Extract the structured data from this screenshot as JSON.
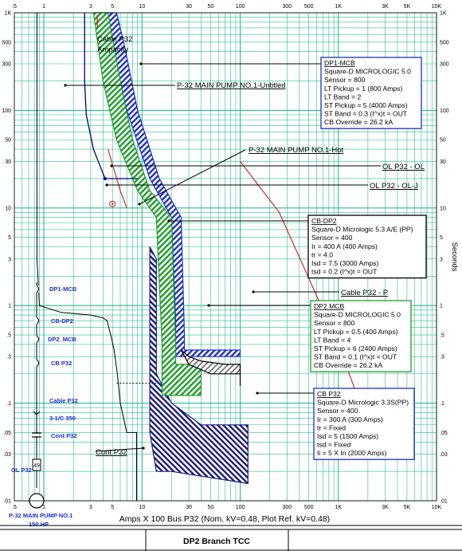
{
  "chart_data": {
    "type": "line",
    "title": "DP2 Branch TCC",
    "xlabel": "Amps  X  100   Bus P32 (Nom. kV=0.48, Plot Ref. kV=0.48)",
    "ylabel": "Seconds",
    "x_scale": "log",
    "y_scale": "log",
    "xlim": [
      0.5,
      10000
    ],
    "ylim": [
      0.01,
      1000
    ],
    "x_ticks": [
      ".5",
      "1",
      "3",
      "5",
      "10",
      "30",
      "50",
      "100",
      "300",
      "500",
      "1K",
      "3K",
      "5K",
      "10K"
    ],
    "y_ticks": [
      "1K",
      "500",
      "300",
      "100",
      "50",
      "30",
      "10",
      "5",
      "3",
      "1",
      ".5",
      ".3",
      ".1",
      ".05",
      ".03",
      ".01"
    ],
    "grid": true,
    "colors": {
      "grid": "#2bbf8a",
      "breaker": "#1f2fc9",
      "cbdp2": "#1e9e2a",
      "cable": "#cc1a1a",
      "cbp32": "#1a1a7a",
      "olp32": "#00007a"
    },
    "series": [
      {
        "name": "Cable P32",
        "kind": "line",
        "x": [
          100,
          250,
          1000,
          2000
        ],
        "y": [
          30,
          9,
          0.4,
          0.06
        ]
      },
      {
        "name": "P-32 MAIN PUMP NO.1-Hot",
        "kind": "line",
        "x": [
          4.5,
          5,
          6,
          7
        ],
        "y": [
          40,
          28,
          15,
          10
        ]
      },
      {
        "name": "OL P32 - OL-J",
        "kind": "line",
        "x": [
          2.6,
          2.6,
          2.7,
          3.2,
          4.2,
          4.4,
          5,
          8,
          9
        ],
        "y": [
          1000,
          200,
          90,
          40,
          20,
          20,
          20,
          20,
          20
        ]
      },
      {
        "name": "P-32 MAIN PUMP NO.1-Untitled",
        "kind": "line",
        "x": [
          0.85,
          0.85,
          0.9,
          1.5,
          3,
          4,
          4.4,
          4.8,
          5.2,
          5.6,
          6,
          7,
          8.8,
          8.8
        ],
        "y": [
          1000,
          3,
          1,
          0.85,
          0.8,
          0.75,
          0.7,
          0.5,
          0.35,
          0.2,
          0.1,
          0.05,
          0.05,
          0.01
        ]
      },
      {
        "name": "DP1-MCB",
        "kind": "band",
        "upper": {
          "x": [
            5.5,
            6.5,
            9,
            15,
            25,
            27,
            27,
            55,
            100,
            100
          ],
          "y": [
            1000,
            500,
            100,
            20,
            8,
            0.5,
            0.35,
            0.35,
            0.35,
            0.3
          ]
        },
        "lower": {
          "x": [
            3.5,
            4.5,
            7,
            12,
            20,
            22,
            22,
            55,
            100,
            100
          ],
          "y": [
            1000,
            500,
            100,
            20,
            8,
            0.7,
            0.3,
            0.3,
            0.3,
            0.3
          ]
        }
      },
      {
        "name": "CB-DP2",
        "kind": "band",
        "upper": {
          "x": [
            4.5,
            6,
            8,
            12,
            20,
            22,
            22,
            30,
            40
          ],
          "y": [
            1000,
            200,
            50,
            15,
            8,
            0.4,
            0.25,
            0.25,
            0.25
          ]
        },
        "lower": {
          "x": [
            3.2,
            4,
            5.5,
            9,
            14,
            16,
            16,
            30,
            40
          ],
          "y": [
            1000,
            200,
            50,
            15,
            8,
            0.4,
            0.12,
            0.12,
            0.12
          ]
        }
      },
      {
        "name": "DP2  MCB",
        "kind": "band",
        "upper": {
          "x": [
            30,
            40,
            70,
            100,
            100,
            100
          ],
          "y": [
            0.3,
            0.27,
            0.25,
            0.25,
            0.2,
            0.2
          ]
        },
        "lower": {
          "x": [
            25,
            30,
            50,
            100,
            100,
            100
          ],
          "y": [
            0.35,
            0.25,
            0.2,
            0.2,
            0.15,
            0.15
          ]
        }
      },
      {
        "name": "CB P32",
        "kind": "band",
        "upper": {
          "x": [
            14,
            14,
            14,
            20,
            40,
            100,
            120
          ],
          "y": [
            3,
            1,
            0.2,
            0.1,
            0.06,
            0.06,
            0.06
          ]
        },
        "lower": {
          "x": [
            12,
            12,
            12,
            12,
            14,
            20,
            120
          ],
          "y": [
            4,
            1,
            0.2,
            0.05,
            0.02,
            0.02,
            0.015
          ]
        }
      }
    ],
    "labels": {
      "cable_ampacity": "Cable P32\nAmpacity",
      "cable_p": "Cable P32 - P",
      "ol_ol": "OL P32 - OL",
      "ol_olj": "OL P32 - OL-J",
      "cont": "Cont P32",
      "untitled": "P-32 MAIN PUMP NO.1-Untitled",
      "hot": "P-32 MAIN PUMP NO.1-Hot"
    },
    "boxes": [
      {
        "title": "DP1-MCB",
        "color": "#1f2fc9",
        "lines": [
          "Square-D  MICROLOGIC 5.0",
          "Sensor = 800",
          "LT Pickup = 1 (800 Amps)",
          "LT Band = 2",
          "ST Pickup = 5 (4000 Amps)",
          "ST Band = 0.3  (I^x)t = OUT",
          "CB Override = 26.2 kA"
        ]
      },
      {
        "title": "CB-DP2",
        "color": "#000000",
        "lines": [
          "Square-D  Micrologic 5.3 A/E (PP)",
          "Sensor = 400",
          "Ir = 400 A (400 Amps)",
          "tr = 4.0",
          "Isd = 7.5 (3000 Amps)",
          "tsd = 0.2  (I^x)t = OUT"
        ]
      },
      {
        "title": "DP2  MCB",
        "color": "#1e9e2a",
        "lines": [
          "Square-D  MICROLOGIC 5.0",
          "Sensor = 800",
          "LT Pickup = 0.5 (400 Amps)",
          "LT Band = 4",
          "ST Pickup = 6 (2400 Amps)",
          "ST Band = 0.1  (I^x)t = OUT",
          "CB Override = 26.2 kA"
        ]
      },
      {
        "title": "CB P32",
        "color": "#1a2fd6",
        "lines": [
          "Square-D  Micrologic 3.3S(PP)",
          "Sensor = 400",
          "Ir = 300 A (300 Amps)",
          "tr = Fixed",
          "Isd = 5 (1500 Amps)",
          "tsd = Fixed",
          "Ii = 5 X In (2000 Amps)"
        ]
      }
    ],
    "oneline": {
      "labels": [
        "DP1-MCB",
        "CB-DP2",
        "DP2_MCB",
        "CB P32",
        "Cable P32",
        "3-1/C 350",
        "Cont P32",
        "OL P32",
        "49",
        "P-32 MAIN PUMP NO.1",
        "150 HP"
      ]
    }
  },
  "footer": {
    "title": "DP2 Branch TCC"
  }
}
